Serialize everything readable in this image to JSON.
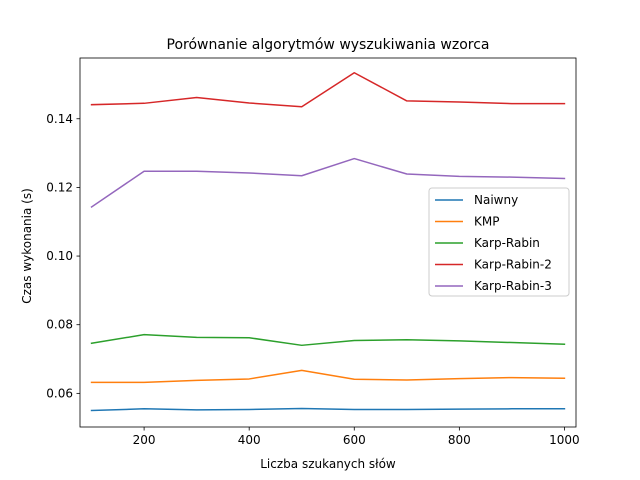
{
  "chart_data": {
    "type": "line",
    "title": "Porównanie algorytmów wyszukiwania wzorca",
    "xlabel": "Liczba szukanych słów",
    "ylabel": "Czas wykonania (s)",
    "xlim": [
      78,
      1022
    ],
    "ylim": [
      0.0502,
      0.1577
    ],
    "x_ticks": [
      200,
      400,
      600,
      800,
      1000
    ],
    "y_ticks": [
      0.06,
      0.08,
      0.1,
      0.12,
      0.14
    ],
    "x_tick_labels": [
      "200",
      "400",
      "600",
      "800",
      "1000"
    ],
    "y_tick_labels": [
      "0.06",
      "0.08",
      "0.10",
      "0.12",
      "0.14"
    ],
    "grid": false,
    "legend_position": "center-right",
    "x": [
      100,
      200,
      300,
      400,
      500,
      600,
      700,
      800,
      900,
      1000
    ],
    "series": [
      {
        "name": "Naiwny",
        "color": "#1f77b4",
        "values": [
          0.055,
          0.0555,
          0.0552,
          0.0553,
          0.0556,
          0.0553,
          0.0553,
          0.0554,
          0.0555,
          0.0555
        ]
      },
      {
        "name": "KMP",
        "color": "#ff7f0e",
        "values": [
          0.0632,
          0.0632,
          0.0638,
          0.0642,
          0.0667,
          0.0641,
          0.0639,
          0.0643,
          0.0646,
          0.0644
        ]
      },
      {
        "name": "Karp-Rabin",
        "color": "#2ca02c",
        "values": [
          0.0746,
          0.0771,
          0.0763,
          0.0762,
          0.074,
          0.0754,
          0.0756,
          0.0753,
          0.0748,
          0.0743
        ]
      },
      {
        "name": "Karp-Rabin-2",
        "color": "#d62728",
        "values": [
          0.1441,
          0.1445,
          0.1462,
          0.1446,
          0.1435,
          0.1534,
          0.1452,
          0.1449,
          0.1444,
          0.1444
        ]
      },
      {
        "name": "Karp-Rabin-3",
        "color": "#9467bd",
        "values": [
          0.1143,
          0.1247,
          0.1247,
          0.1242,
          0.1234,
          0.1284,
          0.1239,
          0.1232,
          0.123,
          0.1226
        ]
      }
    ]
  }
}
